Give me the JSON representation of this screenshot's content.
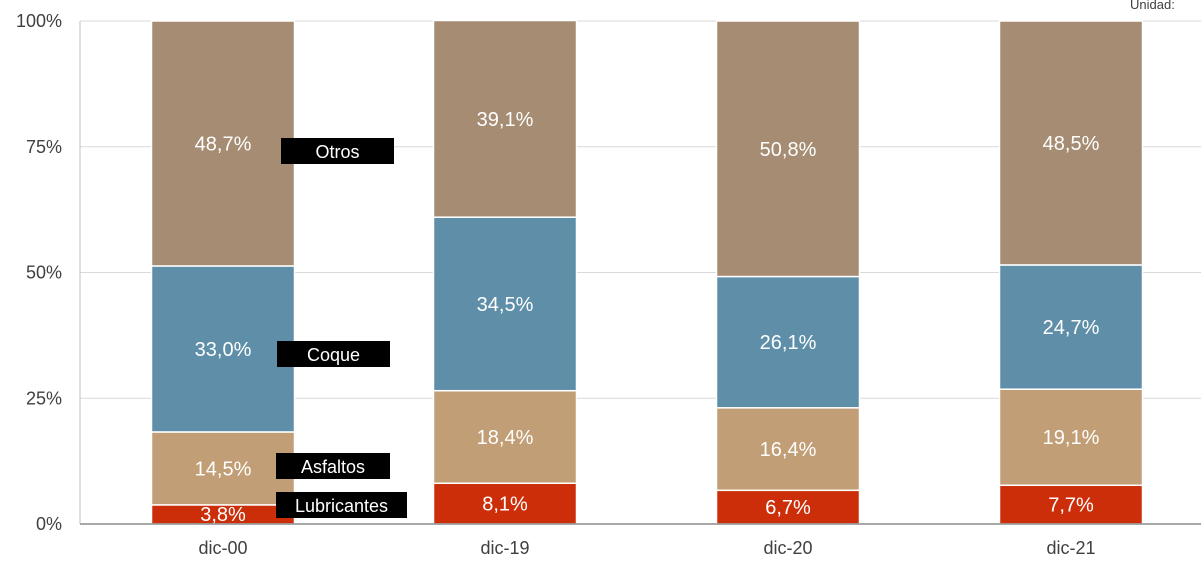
{
  "unit_label": "Unidad:",
  "chart_data": {
    "type": "bar",
    "stacked": true,
    "categories": [
      "dic-00",
      "dic-19",
      "dic-20",
      "dic-21"
    ],
    "series": [
      {
        "name": "Lubricantes",
        "color": "#cc2e0a",
        "values": [
          3.8,
          8.1,
          6.7,
          7.7
        ],
        "labels": [
          "3,8%",
          "8,1%",
          "6,7%",
          "7,7%"
        ]
      },
      {
        "name": "Asfaltos",
        "color": "#c19e75",
        "values": [
          14.5,
          18.4,
          16.4,
          19.1
        ],
        "labels": [
          "14,5%",
          "18,4%",
          "16,4%",
          "19,1%"
        ]
      },
      {
        "name": "Coque",
        "color": "#5f8ea9",
        "values": [
          33.0,
          34.5,
          26.1,
          24.7
        ],
        "labels": [
          "33,0%",
          "34,5%",
          "26,1%",
          "24,7%"
        ]
      },
      {
        "name": "Otros",
        "color": "#a58c73",
        "values": [
          48.7,
          39.1,
          50.8,
          48.5
        ],
        "labels": [
          "48,7%",
          "39,1%",
          "50,8%",
          "48,5%"
        ]
      }
    ],
    "y_ticks": [
      "0%",
      "25%",
      "50%",
      "75%",
      "100%"
    ],
    "ylim": [
      0,
      100
    ],
    "grid": true,
    "legend_position": "inside first bar, right"
  }
}
